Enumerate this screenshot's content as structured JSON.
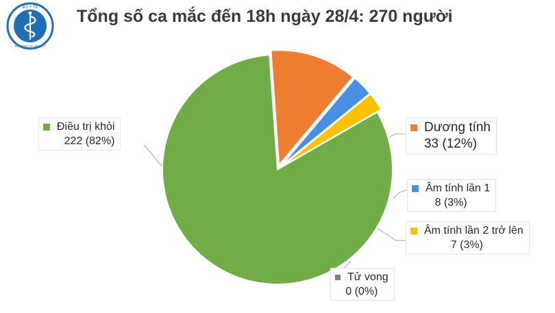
{
  "header": {
    "title": "Tổng số ca mắc đến 18h ngày 28/4: 270 người",
    "logo_top_text": "BỘ Y TẾ",
    "logo_bottom_text": "MINISTRY OF HEALTH"
  },
  "chart_data": {
    "type": "pie",
    "title": "Tổng số ca mắc đến 18h ngày 28/4: 270 người",
    "total": 270,
    "slices": [
      {
        "name": "Điều trị khỏi",
        "value": 222,
        "percent_label": "222 (82%)",
        "color": "#70ad47",
        "exploded": false
      },
      {
        "name": "Dương tính",
        "value": 33,
        "percent_label": "33 (12%)",
        "color": "#ed7d31",
        "exploded": true
      },
      {
        "name": "Âm tính lần 1",
        "value": 8,
        "percent_label": "8 (3%)",
        "color": "#4a90e2",
        "exploded": true
      },
      {
        "name": "Âm tính lần 2 trở lên",
        "value": 7,
        "percent_label": "7 (3%)",
        "color": "#ffc000",
        "exploded": true
      },
      {
        "name": "Tử vong",
        "value": 0,
        "percent_label": "0 (0%)",
        "color": "#7f7f7f",
        "exploded": false
      }
    ]
  },
  "colors": {
    "title_text": "#3a3a3a",
    "logo_blue": "#1f6fb5",
    "leader_line": "#a6a6a6"
  }
}
